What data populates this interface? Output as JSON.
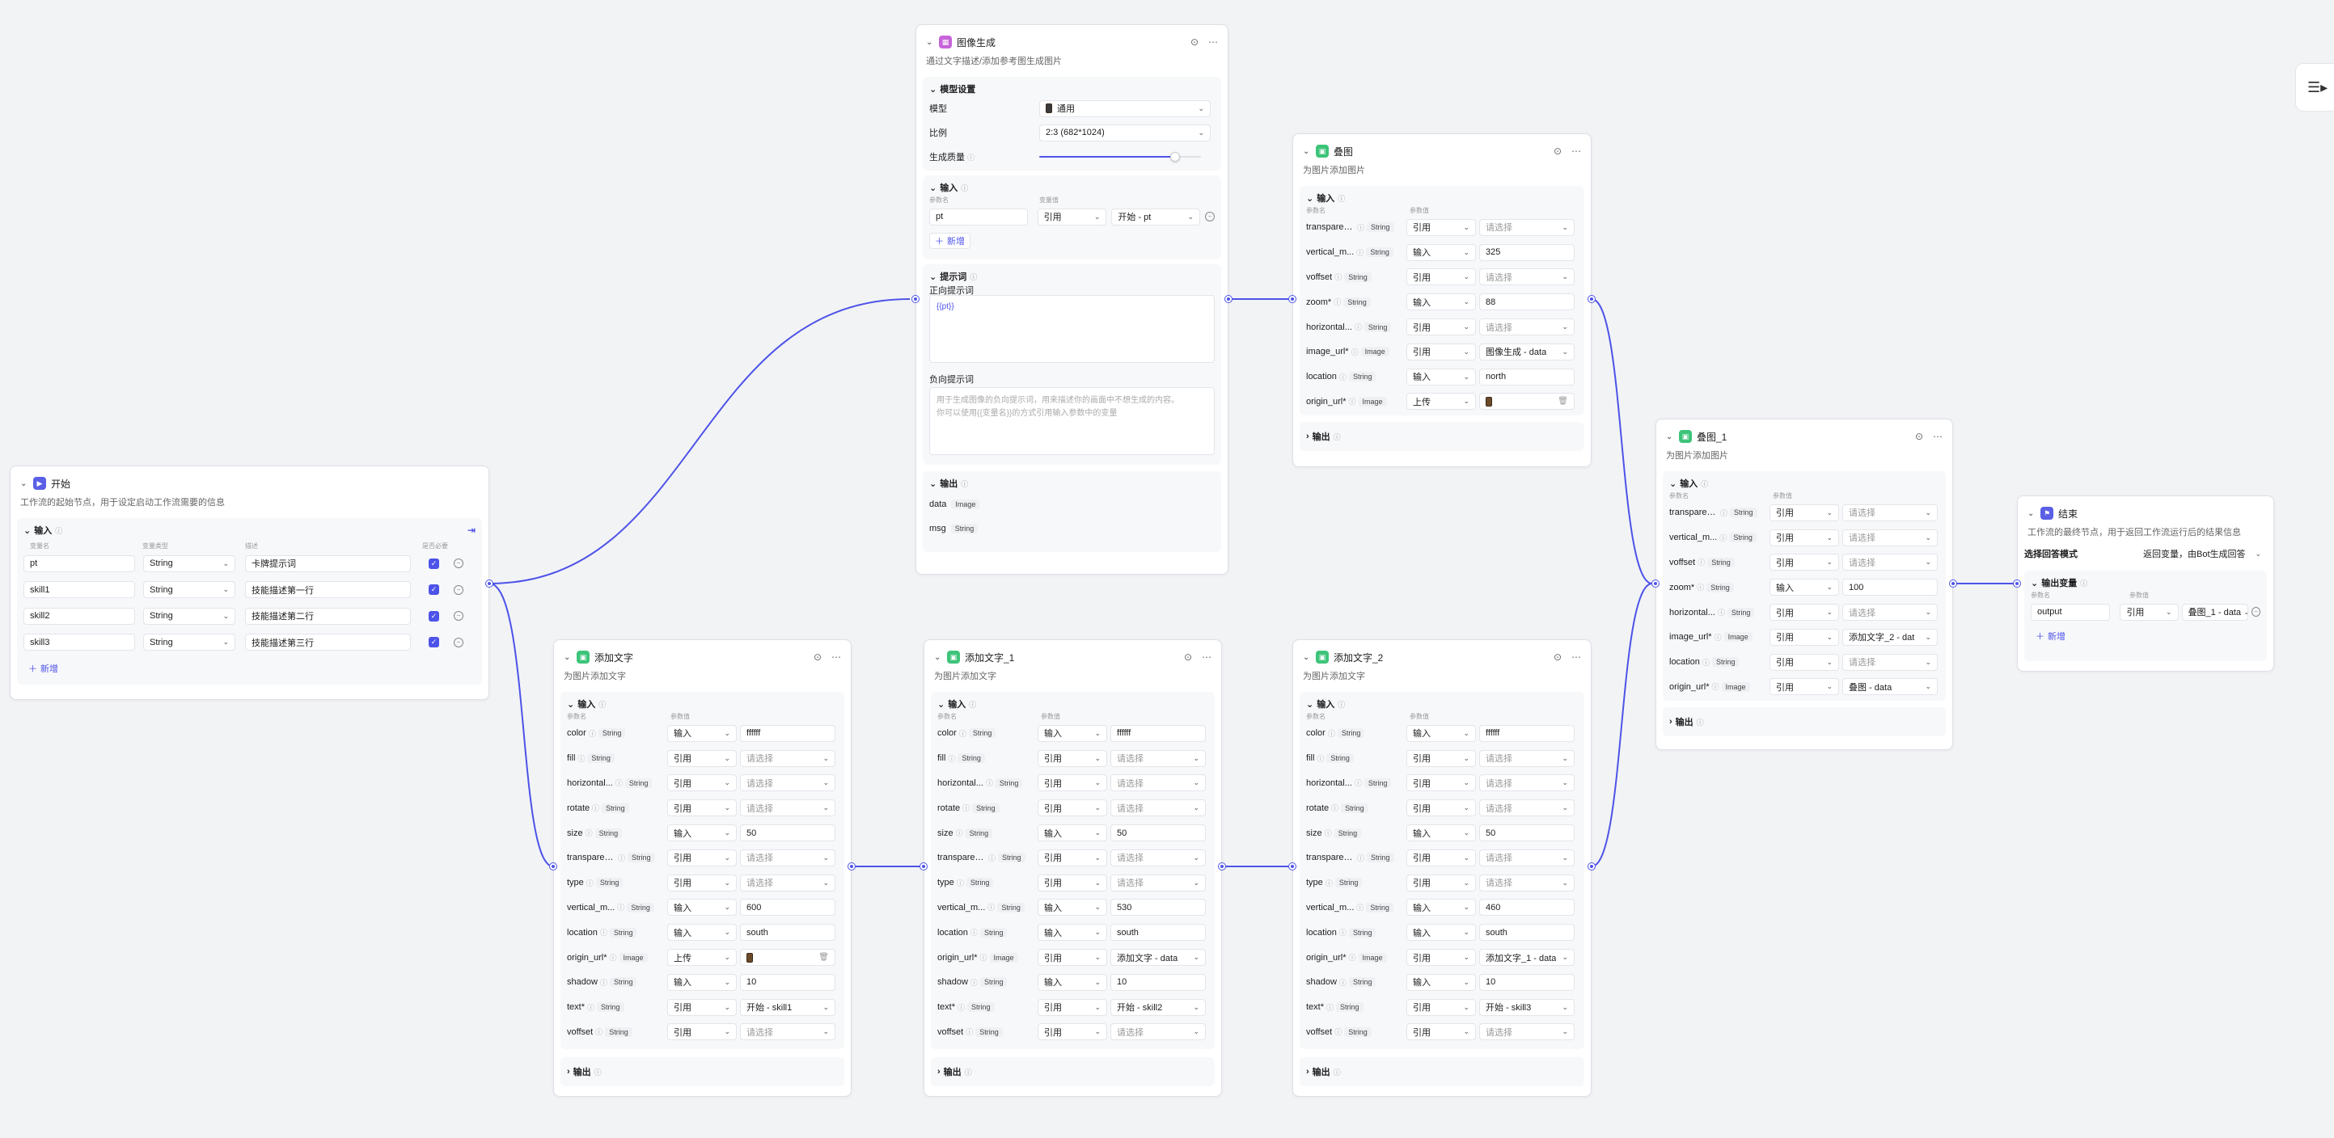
{
  "nodes": {
    "start": {
      "title": "开始",
      "desc": "工作流的起始节点，用于设定启动工作流需要的信息",
      "section": "输入",
      "cols": [
        "变量名",
        "变量类型",
        "描述",
        "是否必要"
      ],
      "rows": [
        {
          "name": "pt",
          "type": "String",
          "desc": "卡牌提示词"
        },
        {
          "name": "skill1",
          "type": "String",
          "desc": "技能描述第一行"
        },
        {
          "name": "skill2",
          "type": "String",
          "desc": "技能描述第二行"
        },
        {
          "name": "skill3",
          "type": "String",
          "desc": "技能描述第三行"
        }
      ],
      "add": "新增"
    },
    "image_gen": {
      "title": "图像生成",
      "desc": "通过文字描述/添加参考图生成图片",
      "model_section": "模型设置",
      "model_label": "模型",
      "model_value": "通用",
      "ratio_label": "比例",
      "ratio_value": "2:3 (682*1024)",
      "quality_label": "生成质量",
      "quality_level": 0.84,
      "input_section": "输入",
      "input_cols": [
        "参数名",
        "变量值"
      ],
      "input_row": {
        "name": "pt",
        "mode": "引用",
        "value": "开始 - pt"
      },
      "add": "新增",
      "prompt_section": "提示词",
      "pos_label": "正向提示词",
      "pos_value": "{{pt}}",
      "neg_label": "负向提示词",
      "neg_placeholder_1": "用于生成图像的负向提示词，用来描述你的画面中不想生成的内容。",
      "neg_placeholder_2": "你可以使用{{变量名}}的方式引用输入参数中的变量",
      "output_section": "输出",
      "outputs": [
        {
          "name": "data",
          "type": "Image"
        },
        {
          "name": "msg",
          "type": "String"
        }
      ]
    },
    "overlay": {
      "title": "叠图",
      "desc": "为图片添加图片",
      "section": "输入",
      "cols": [
        "参数名",
        "参数值"
      ],
      "rows": [
        {
          "name": "transparen...",
          "type": "String",
          "mode": "引用",
          "value": "请选择",
          "ph": true
        },
        {
          "name": "vertical_m...",
          "type": "String",
          "mode": "输入",
          "value": "325"
        },
        {
          "name": "voffset",
          "type": "String",
          "mode": "引用",
          "value": "请选择",
          "ph": true
        },
        {
          "name": "zoom*",
          "type": "String",
          "mode": "输入",
          "value": "88"
        },
        {
          "name": "horizontal...",
          "type": "String",
          "mode": "引用",
          "value": "请选择",
          "ph": true
        },
        {
          "name": "image_url*",
          "type": "Image",
          "mode": "引用",
          "value": "图像生成 - data"
        },
        {
          "name": "location",
          "type": "String",
          "mode": "输入",
          "value": "north"
        },
        {
          "name": "origin_url*",
          "type": "Image",
          "mode": "上传",
          "value": "",
          "upload": true
        }
      ],
      "output": "输出"
    },
    "overlay1": {
      "title": "叠图_1",
      "desc": "为图片添加图片",
      "section": "输入",
      "cols": [
        "参数名",
        "参数值"
      ],
      "rows": [
        {
          "name": "transparen...",
          "type": "String",
          "mode": "引用",
          "value": "请选择",
          "ph": true
        },
        {
          "name": "vertical_m...",
          "type": "String",
          "mode": "引用",
          "value": "请选择",
          "ph": true
        },
        {
          "name": "voffset",
          "type": "String",
          "mode": "引用",
          "value": "请选择",
          "ph": true
        },
        {
          "name": "zoom*",
          "type": "String",
          "mode": "输入",
          "value": "100"
        },
        {
          "name": "horizontal...",
          "type": "String",
          "mode": "引用",
          "value": "请选择",
          "ph": true
        },
        {
          "name": "image_url*",
          "type": "Image",
          "mode": "引用",
          "value": "添加文字_2 - dat"
        },
        {
          "name": "location",
          "type": "String",
          "mode": "引用",
          "value": "请选择",
          "ph": true
        },
        {
          "name": "origin_url*",
          "type": "Image",
          "mode": "引用",
          "value": "叠图 - data"
        }
      ],
      "output": "输出"
    },
    "text0": {
      "title": "添加文字",
      "desc": "为图片添加文字",
      "section": "输入",
      "cols": [
        "参数名",
        "参数值"
      ],
      "rows": [
        {
          "name": "color",
          "type": "String",
          "mode": "输入",
          "value": "ffffff"
        },
        {
          "name": "fill",
          "type": "String",
          "mode": "引用",
          "value": "请选择",
          "ph": true
        },
        {
          "name": "horizontal...",
          "type": "String",
          "mode": "引用",
          "value": "请选择",
          "ph": true
        },
        {
          "name": "rotate",
          "type": "String",
          "mode": "引用",
          "value": "请选择",
          "ph": true
        },
        {
          "name": "size",
          "type": "String",
          "mode": "输入",
          "value": "50"
        },
        {
          "name": "transparen...",
          "type": "String",
          "mode": "引用",
          "value": "请选择",
          "ph": true
        },
        {
          "name": "type",
          "type": "String",
          "mode": "引用",
          "value": "请选择",
          "ph": true
        },
        {
          "name": "vertical_m...",
          "type": "String",
          "mode": "输入",
          "value": "600"
        },
        {
          "name": "location",
          "type": "String",
          "mode": "输入",
          "value": "south"
        },
        {
          "name": "origin_url*",
          "type": "Image",
          "mode": "上传",
          "value": "",
          "upload": true
        },
        {
          "name": "shadow",
          "type": "String",
          "mode": "输入",
          "value": "10"
        },
        {
          "name": "text*",
          "type": "String",
          "mode": "引用",
          "value": "开始 - skill1"
        },
        {
          "name": "voffset",
          "type": "String",
          "mode": "引用",
          "value": "请选择",
          "ph": true
        }
      ],
      "output": "输出"
    },
    "text1": {
      "title": "添加文字_1",
      "desc": "为图片添加文字",
      "section": "输入",
      "cols": [
        "参数名",
        "参数值"
      ],
      "rows": [
        {
          "name": "color",
          "type": "String",
          "mode": "输入",
          "value": "ffffff"
        },
        {
          "name": "fill",
          "type": "String",
          "mode": "引用",
          "value": "请选择",
          "ph": true
        },
        {
          "name": "horizontal...",
          "type": "String",
          "mode": "引用",
          "value": "请选择",
          "ph": true
        },
        {
          "name": "rotate",
          "type": "String",
          "mode": "引用",
          "value": "请选择",
          "ph": true
        },
        {
          "name": "size",
          "type": "String",
          "mode": "输入",
          "value": "50"
        },
        {
          "name": "transparen...",
          "type": "String",
          "mode": "引用",
          "value": "请选择",
          "ph": true
        },
        {
          "name": "type",
          "type": "String",
          "mode": "引用",
          "value": "请选择",
          "ph": true
        },
        {
          "name": "vertical_m...",
          "type": "String",
          "mode": "输入",
          "value": "530"
        },
        {
          "name": "location",
          "type": "String",
          "mode": "输入",
          "value": "south"
        },
        {
          "name": "origin_url*",
          "type": "Image",
          "mode": "引用",
          "value": "添加文字 - data"
        },
        {
          "name": "shadow",
          "type": "String",
          "mode": "输入",
          "value": "10"
        },
        {
          "name": "text*",
          "type": "String",
          "mode": "引用",
          "value": "开始 - skill2"
        },
        {
          "name": "voffset",
          "type": "String",
          "mode": "引用",
          "value": "请选择",
          "ph": true
        }
      ],
      "output": "输出"
    },
    "text2": {
      "title": "添加文字_2",
      "desc": "为图片添加文字",
      "section": "输入",
      "cols": [
        "参数名",
        "参数值"
      ],
      "rows": [
        {
          "name": "color",
          "type": "String",
          "mode": "输入",
          "value": "ffffff"
        },
        {
          "name": "fill",
          "type": "String",
          "mode": "引用",
          "value": "请选择",
          "ph": true
        },
        {
          "name": "horizontal...",
          "type": "String",
          "mode": "引用",
          "value": "请选择",
          "ph": true
        },
        {
          "name": "rotate",
          "type": "String",
          "mode": "引用",
          "value": "请选择",
          "ph": true
        },
        {
          "name": "size",
          "type": "String",
          "mode": "输入",
          "value": "50"
        },
        {
          "name": "transparen...",
          "type": "String",
          "mode": "引用",
          "value": "请选择",
          "ph": true
        },
        {
          "name": "type",
          "type": "String",
          "mode": "引用",
          "value": "请选择",
          "ph": true
        },
        {
          "name": "vertical_m...",
          "type": "String",
          "mode": "输入",
          "value": "460"
        },
        {
          "name": "location",
          "type": "String",
          "mode": "输入",
          "value": "south"
        },
        {
          "name": "origin_url*",
          "type": "Image",
          "mode": "引用",
          "value": "添加文字_1 - data"
        },
        {
          "name": "shadow",
          "type": "String",
          "mode": "输入",
          "value": "10"
        },
        {
          "name": "text*",
          "type": "String",
          "mode": "引用",
          "value": "开始 - skill3"
        },
        {
          "name": "voffset",
          "type": "String",
          "mode": "引用",
          "value": "请选择",
          "ph": true
        }
      ],
      "output": "输出"
    },
    "end": {
      "title": "结束",
      "desc": "工作流的最终节点，用于返回工作流运行后的结果信息",
      "mode_label": "选择回答模式",
      "mode_value": "返回变量，由Bot生成回答",
      "out_section": "输出变量",
      "cols": [
        "参数名",
        "参数值"
      ],
      "row": {
        "name": "output",
        "mode": "引用",
        "value": "叠图_1 - data"
      },
      "add": "新增"
    }
  },
  "colors": {
    "accent": "#4d53e8",
    "start_icon": "#5a5fe6",
    "imggen_icon": "#c764d9",
    "plugin_icon": "#3ec47a",
    "end_icon": "#5a5fe6"
  },
  "icons": {
    "start": "play-icon",
    "image_gen": "image-icon",
    "plugin": "plugin-icon",
    "end": "flag-icon",
    "toolbar": "outline-list-icon"
  }
}
